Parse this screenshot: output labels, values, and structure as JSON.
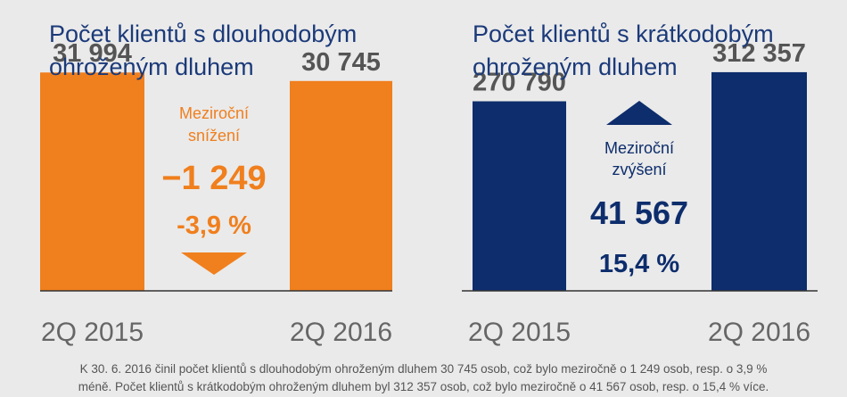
{
  "colors": {
    "left_series": "#f07f1d",
    "right_series": "#0d2d6c",
    "title": "#1b3a7a",
    "value_label": "#555555",
    "tick_label": "#666666",
    "baseline": "#333333",
    "background": "#eaeaea"
  },
  "chart_data": [
    {
      "type": "bar",
      "title": "Počet klientů s dlouhodobým ohroženým dluhem",
      "title_lines": [
        "Počet klientů s dlouhodobým",
        "ohroženým dluhem"
      ],
      "categories": [
        "2Q 2015",
        "2Q 2016"
      ],
      "values": [
        31994,
        30745
      ],
      "value_labels": [
        "31 994",
        "30 745"
      ],
      "ylim": [
        0,
        40000
      ],
      "grid": false,
      "change": {
        "direction": "down",
        "label_lines": [
          "Meziroční",
          "snížení"
        ],
        "absolute": "−1 249",
        "percent": "-3,9 %",
        "arrow_icon": "triangle-down-icon"
      }
    },
    {
      "type": "bar",
      "title": "Počet klientů s krátkodobým ohroženým dluhem",
      "title_lines": [
        "Počet klientů s krátkodobým",
        "ohroženým dluhem"
      ],
      "categories": [
        "2Q 2015",
        "2Q 2016"
      ],
      "values": [
        270790,
        312357
      ],
      "value_labels": [
        "270 790",
        "312 357"
      ],
      "ylim": [
        0,
        390000
      ],
      "grid": false,
      "change": {
        "direction": "up",
        "label_lines": [
          "Meziroční",
          "zvýšení"
        ],
        "absolute": "41 567",
        "percent": "15,4 %",
        "arrow_icon": "triangle-up-icon"
      }
    }
  ],
  "footer": {
    "lines": [
      "K 30. 6. 2016 činil počet klientů s dlouhodobým ohroženým dluhem 30 745 osob, což bylo meziročně o 1 249 osob, resp. o 3,9 %",
      "méně. Počet klientů s krátkodobým ohroženým dluhem byl 312 357 osob, což bylo meziročně o 41 567 osob, resp. o 15,4 % více."
    ]
  }
}
